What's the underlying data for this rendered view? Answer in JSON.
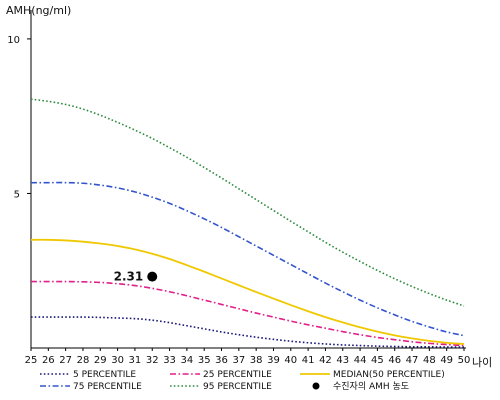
{
  "chart_data": {
    "type": "line",
    "ylabel": "AMH(ng/ml)",
    "xlabel": "나이",
    "xlim": [
      25,
      50
    ],
    "ylim": [
      0,
      11
    ],
    "x_ticks": [
      25,
      26,
      27,
      28,
      29,
      30,
      31,
      32,
      33,
      34,
      35,
      36,
      37,
      38,
      39,
      40,
      41,
      42,
      43,
      44,
      45,
      46,
      47,
      48,
      49,
      50
    ],
    "y_ticks": [
      5,
      10
    ],
    "grid": false,
    "legend_position": "bottom",
    "series": [
      {
        "name": "5 PERCENTILE",
        "color": "#1a1a7a",
        "dash": "dot",
        "x": [
          25,
          26,
          27,
          28,
          29,
          30,
          31,
          32,
          33,
          34,
          35,
          36,
          37,
          38,
          39,
          40,
          41,
          42,
          43,
          44,
          45,
          46,
          47,
          48,
          49,
          50
        ],
        "values": [
          1.0,
          1.0,
          1.0,
          1.0,
          0.99,
          0.97,
          0.95,
          0.9,
          0.82,
          0.72,
          0.62,
          0.52,
          0.43,
          0.35,
          0.28,
          0.22,
          0.17,
          0.13,
          0.1,
          0.08,
          0.06,
          0.05,
          0.04,
          0.04,
          0.03,
          0.03
        ]
      },
      {
        "name": "25 PERCENTILE",
        "color": "#e0208a",
        "dash": "dashdot",
        "x": [
          25,
          26,
          27,
          28,
          29,
          30,
          31,
          32,
          33,
          34,
          35,
          36,
          37,
          38,
          39,
          40,
          41,
          42,
          43,
          44,
          45,
          46,
          47,
          48,
          49,
          50
        ],
        "values": [
          2.15,
          2.15,
          2.15,
          2.14,
          2.12,
          2.08,
          2.02,
          1.93,
          1.82,
          1.69,
          1.55,
          1.41,
          1.27,
          1.13,
          1.0,
          0.87,
          0.75,
          0.64,
          0.53,
          0.43,
          0.34,
          0.27,
          0.2,
          0.15,
          0.11,
          0.08
        ]
      },
      {
        "name": "MEDIAN(50 PERCENTILE)",
        "color": "#f0c800",
        "dash": "solid",
        "x": [
          25,
          26,
          27,
          28,
          29,
          30,
          31,
          32,
          33,
          34,
          35,
          36,
          37,
          38,
          39,
          40,
          41,
          42,
          43,
          44,
          45,
          46,
          47,
          48,
          49,
          50
        ],
        "values": [
          3.5,
          3.5,
          3.48,
          3.44,
          3.38,
          3.3,
          3.19,
          3.05,
          2.88,
          2.68,
          2.47,
          2.25,
          2.03,
          1.81,
          1.6,
          1.39,
          1.19,
          1.0,
          0.83,
          0.67,
          0.53,
          0.41,
          0.31,
          0.23,
          0.17,
          0.13
        ]
      },
      {
        "name": "75 PERCENTILE",
        "color": "#3355cc",
        "dash": "dashdot",
        "x": [
          25,
          26,
          27,
          28,
          29,
          30,
          31,
          32,
          33,
          34,
          35,
          36,
          37,
          38,
          39,
          40,
          41,
          42,
          43,
          44,
          45,
          46,
          47,
          48,
          49,
          50
        ],
        "values": [
          5.35,
          5.35,
          5.35,
          5.33,
          5.27,
          5.18,
          5.05,
          4.88,
          4.68,
          4.44,
          4.18,
          3.9,
          3.6,
          3.3,
          3.0,
          2.7,
          2.4,
          2.1,
          1.82,
          1.55,
          1.3,
          1.07,
          0.86,
          0.68,
          0.52,
          0.4
        ]
      },
      {
        "name": "95 PERCENTILE",
        "color": "#2e8b3e",
        "dash": "dot",
        "x": [
          25,
          26,
          27,
          28,
          29,
          30,
          31,
          32,
          33,
          34,
          35,
          36,
          37,
          38,
          39,
          40,
          41,
          42,
          43,
          44,
          45,
          46,
          47,
          48,
          49,
          50
        ],
        "values": [
          8.05,
          7.98,
          7.88,
          7.73,
          7.53,
          7.3,
          7.05,
          6.78,
          6.48,
          6.17,
          5.84,
          5.5,
          5.15,
          4.8,
          4.45,
          4.1,
          3.76,
          3.42,
          3.1,
          2.8,
          2.51,
          2.24,
          1.99,
          1.76,
          1.55,
          1.36
        ]
      }
    ],
    "point": {
      "name": "수진자의 AMH 농도",
      "x": 32,
      "y": 2.31,
      "label": "2.31",
      "color": "#000000"
    },
    "legend": [
      [
        "5 PERCENTILE",
        "25 PERCENTILE",
        "MEDIAN(50 PERCENTILE)"
      ],
      [
        "75 PERCENTILE",
        "95 PERCENTILE",
        "수진자의 AMH 농도"
      ]
    ]
  }
}
